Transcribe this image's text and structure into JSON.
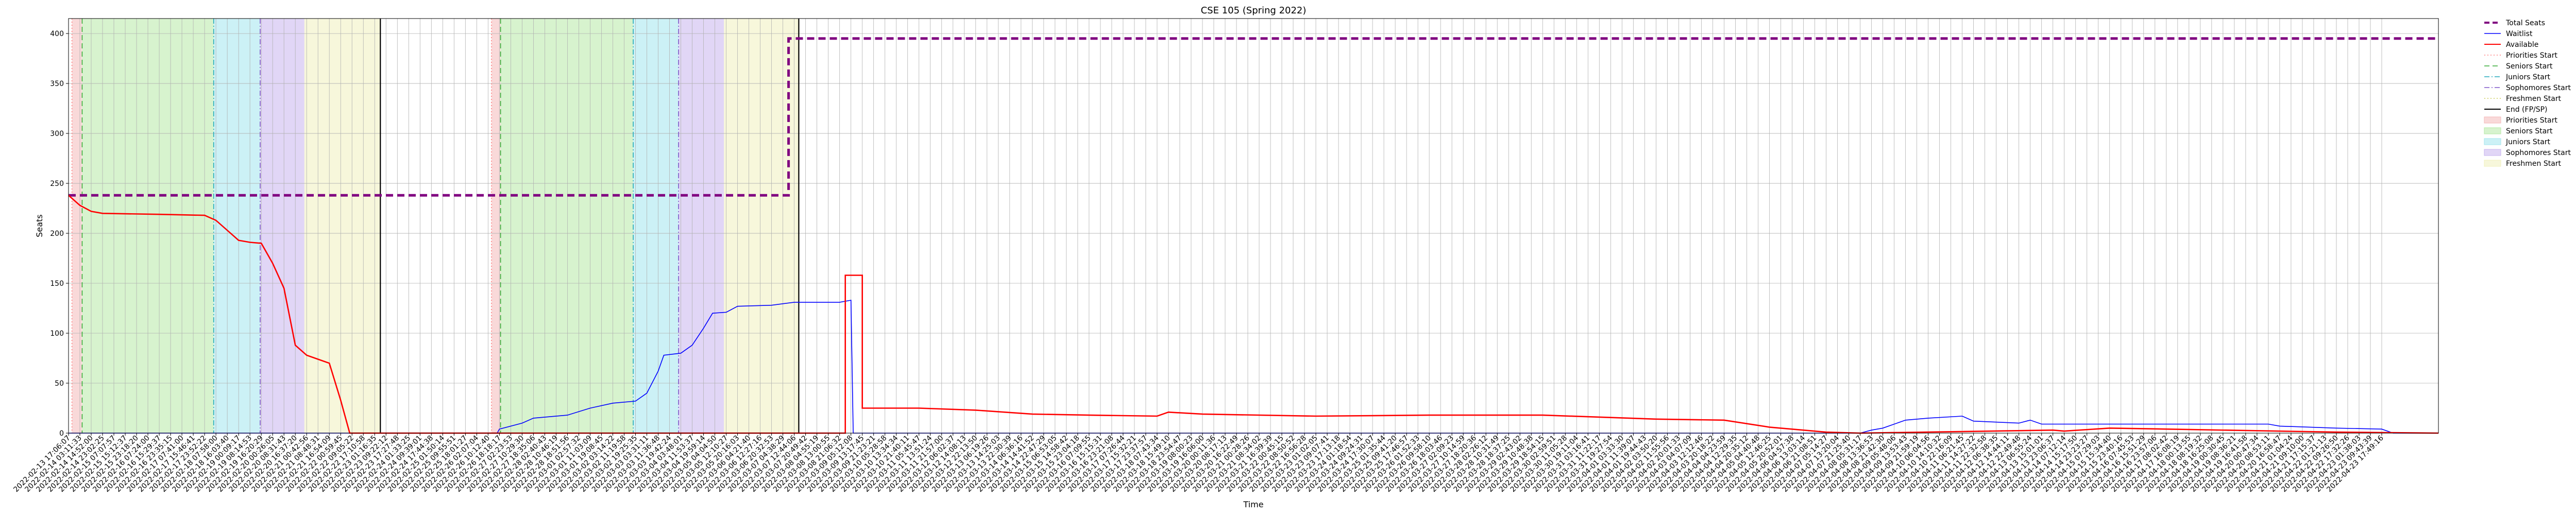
{
  "chart_data": {
    "type": "line",
    "title": "CSE 105 (Spring 2022)",
    "xlabel": "Time",
    "ylabel": "Seats",
    "ylim": [
      0,
      415
    ],
    "yticks": [
      0,
      50,
      100,
      150,
      200,
      250,
      300,
      350,
      400
    ],
    "grid": true,
    "legend_position": "outside-right",
    "x_tick_labels": [
      "2022-02-13 17:06:07",
      "2022-02-14 03:11:33",
      "2022-02-14 14:52:00",
      "2022-02-14 23:02:25",
      "2022-02-15 07:07:57",
      "2022-02-15 15:12:37",
      "2022-02-15 23:18:20",
      "2022-02-16 07:24:00",
      "2022-02-16 15:29:37",
      "2022-02-16 23:35:15",
      "2022-02-17 07:41:00",
      "2022-02-17 15:46:41",
      "2022-02-17 23:52:22",
      "2022-02-18 07:58:00",
      "2022-02-18 16:03:40",
      "2022-02-19 00:09:17",
      "2022-02-19 08:14:53",
      "2022-02-19 16:20:29",
      "2022-02-20 00:26:05",
      "2022-02-20 08:31:43",
      "2022-02-20 16:37:20",
      "2022-02-21 00:42:56",
      "2022-02-21 08:48:31",
      "2022-02-21 16:54:09",
      "2022-02-22 00:59:45",
      "2022-02-22 09:05:22",
      "2022-02-22 17:10:58",
      "2022-02-23 01:16:35",
      "2022-02-23 09:22:12",
      "2022-02-23 17:27:48",
      "2022-02-24 01:33:25",
      "2022-02-24 09:39:01",
      "2022-02-24 17:44:38",
      "2022-02-25 01:50:14",
      "2022-02-25 09:55:51",
      "2022-02-25 18:01:27",
      "2022-02-26 02:07:04",
      "2022-02-26 10:12:40",
      "2022-02-26 18:18:17",
      "2022-02-27 02:23:53",
      "2022-02-27 10:29:30",
      "2022-02-27 18:35:06",
      "2022-02-28 02:40:43",
      "2022-02-28 10:46:19",
      "2022-02-28 18:51:56",
      "2022-03-01 02:57:32",
      "2022-03-01 11:03:09",
      "2022-03-01 19:08:45",
      "2022-03-02 03:14:22",
      "2022-03-02 11:19:58",
      "2022-03-02 19:25:35",
      "2022-03-03 03:31:11",
      "2022-03-03 11:36:48",
      "2022-03-03 19:42:24",
      "2022-03-04 03:48:01",
      "2022-03-04 11:53:37",
      "2022-03-04 19:59:14",
      "2022-03-05 04:04:50",
      "2022-03-05 12:10:27",
      "2022-03-05 20:16:03",
      "2022-03-06 04:21:40",
      "2022-03-06 12:27:16",
      "2022-03-06 20:32:53",
      "2022-03-07 04:38:29",
      "2022-03-07 12:44:06",
      "2022-03-07 20:49:42",
      "2022-03-08 04:55:19",
      "2022-03-08 13:00:55",
      "2022-03-08 21:06:32",
      "2022-03-09 05:12:08",
      "2022-03-09 13:17:45",
      "2022-03-09 21:23:21",
      "2022-03-10 05:28:58",
      "2022-03-10 13:34:34",
      "2022-03-10 21:40:11",
      "2022-03-11 05:45:47",
      "2022-03-11 13:51:24",
      "2022-03-11 21:57:00",
      "2022-03-12 06:02:37",
      "2022-03-12 14:08:13",
      "2022-03-12 22:13:50",
      "2022-03-13 06:19:26",
      "2022-03-13 14:25:03",
      "2022-03-13 22:30:39",
      "2022-03-14 06:36:16",
      "2022-03-14 14:41:52",
      "2022-03-14 22:47:29",
      "2022-03-15 06:53:05",
      "2022-03-15 14:58:42",
      "2022-03-15 23:04:18",
      "2022-03-16 07:09:55",
      "2022-03-16 15:15:31",
      "2022-03-16 23:21:08",
      "2022-03-17 07:26:44",
      "2022-03-17 15:32:21",
      "2022-03-17 23:37:57",
      "2022-03-18 07:43:34",
      "2022-03-18 15:49:10",
      "2022-03-18 23:54:47",
      "2022-03-19 08:00:23",
      "2022-03-19 16:06:00",
      "2022-03-20 00:11:36",
      "2022-03-20 08:17:13",
      "2022-03-20 16:22:49",
      "2022-03-21 00:28:26",
      "2022-03-21 08:34:02",
      "2022-03-21 16:39:39",
      "2022-03-22 00:45:15",
      "2022-03-22 08:50:52",
      "2022-03-22 16:56:28",
      "2022-03-23 01:02:05",
      "2022-03-23 09:07:41",
      "2022-03-23 17:13:18",
      "2022-03-24 01:18:54",
      "2022-03-24 09:24:31",
      "2022-03-24 17:30:07",
      "2022-03-25 01:35:44",
      "2022-03-25 09:41:20",
      "2022-03-25 17:46:57",
      "2022-03-26 01:52:33",
      "2022-03-26 09:58:10",
      "2022-03-26 18:03:46",
      "2022-03-27 02:09:23",
      "2022-03-27 10:14:59",
      "2022-03-27 18:20:36",
      "2022-03-28 02:26:12",
      "2022-03-28 10:31:49",
      "2022-03-28 18:37:25",
      "2022-03-29 02:43:02",
      "2022-03-29 10:48:38",
      "2022-03-29 18:54:15",
      "2022-03-30 02:59:51",
      "2022-03-30 11:05:28",
      "2022-03-30 19:11:04",
      "2022-03-31 03:16:41",
      "2022-03-31 11:22:17",
      "2022-03-31 19:27:54",
      "2022-04-01 03:33:30",
      "2022-04-01 11:39:07",
      "2022-04-01 19:44:43",
      "2022-04-02 03:50:20",
      "2022-04-02 11:55:56",
      "2022-04-02 20:01:33",
      "2022-04-03 04:07:09",
      "2022-04-03 12:12:46",
      "2022-04-03 20:18:22",
      "2022-04-04 04:23:59",
      "2022-04-04 12:29:35",
      "2022-04-04 20:35:12",
      "2022-04-05 04:40:48",
      "2022-04-05 12:46:25",
      "2022-04-05 20:52:01",
      "2022-04-06 04:57:38",
      "2022-04-06 13:03:14",
      "2022-04-06 21:08:51",
      "2022-04-07 05:14:27",
      "2022-04-07 13:20:04",
      "2022-04-07 21:25:40",
      "2022-04-08 05:31:17",
      "2022-04-08 13:36:53",
      "2022-04-08 21:42:30",
      "2022-04-09 05:48:06",
      "2022-04-09 13:53:43",
      "2022-04-09 21:59:19",
      "2022-04-10 06:04:56",
      "2022-04-10 14:10:32",
      "2022-04-10 22:16:09",
      "2022-04-11 06:21:45",
      "2022-04-11 14:27:22",
      "2022-04-11 22:32:58",
      "2022-04-12 06:38:35",
      "2022-04-12 14:44:11",
      "2022-04-12 22:49:48",
      "2022-04-13 06:55:24",
      "2022-04-13 15:01:01",
      "2022-04-13 23:06:37",
      "2022-04-14 07:12:14",
      "2022-04-14 15:17:50",
      "2022-04-14 23:23:27",
      "2022-04-15 07:29:03",
      "2022-04-15 15:34:40",
      "2022-04-15 23:40:16",
      "2022-04-16 07:45:53",
      "2022-04-16 15:51:29",
      "2022-04-16 23:57:06",
      "2022-04-17 08:02:42",
      "2022-04-17 16:08:19",
      "2022-04-18 00:13:55",
      "2022-04-18 08:19:32",
      "2022-04-18 16:25:08",
      "2022-04-19 00:30:45",
      "2022-04-19 08:36:21",
      "2022-04-19 16:41:58",
      "2022-04-20 00:47:34",
      "2022-04-20 08:53:11",
      "2022-04-20 16:58:47",
      "2022-04-21 01:04:24",
      "2022-04-21 09:10:00",
      "2022-04-21 17:15:37",
      "2022-04-22 01:21:13",
      "2022-04-22 09:26:50",
      "2022-04-22 17:32:26",
      "2022-04-23 01:38:03",
      "2022-04-23 09:43:39",
      "2022-04-23 17:49:16"
    ],
    "x_domain": [
      0,
      209
    ],
    "series": [
      {
        "name": "Total Seats",
        "color": "#800080",
        "style": "dashed",
        "points": [
          [
            0,
            238
          ],
          [
            63.5,
            238
          ],
          [
            63.5,
            395
          ],
          [
            209,
            395
          ]
        ]
      },
      {
        "name": "Waitlist",
        "color": "#0000ff",
        "style": "solid",
        "points": [
          [
            0,
            0
          ],
          [
            37.8,
            0
          ],
          [
            38,
            4
          ],
          [
            40,
            10
          ],
          [
            41,
            15
          ],
          [
            44,
            18
          ],
          [
            46,
            25
          ],
          [
            48,
            30
          ],
          [
            50,
            32
          ],
          [
            51,
            40
          ],
          [
            52,
            62
          ],
          [
            52.5,
            78
          ],
          [
            54,
            80
          ],
          [
            55,
            88
          ],
          [
            56,
            105
          ],
          [
            56.8,
            120
          ],
          [
            58,
            121
          ],
          [
            59,
            127
          ],
          [
            62,
            128
          ],
          [
            64,
            131
          ],
          [
            68,
            131
          ],
          [
            69,
            133
          ],
          [
            69.2,
            0
          ],
          [
            158,
            0
          ],
          [
            159,
            3
          ],
          [
            160,
            5
          ],
          [
            162,
            13
          ],
          [
            164,
            15
          ],
          [
            167,
            17
          ],
          [
            168,
            12
          ],
          [
            172,
            10
          ],
          [
            173,
            13
          ],
          [
            174,
            9
          ],
          [
            194,
            9
          ],
          [
            195,
            7
          ],
          [
            200,
            5
          ],
          [
            204,
            4
          ],
          [
            205,
            0
          ],
          [
            209,
            0
          ]
        ]
      },
      {
        "name": "Available",
        "color": "#ff0000",
        "style": "solid",
        "points": [
          [
            0,
            238
          ],
          [
            1,
            228
          ],
          [
            2,
            222
          ],
          [
            3,
            220
          ],
          [
            8,
            219
          ],
          [
            12,
            218
          ],
          [
            13,
            213
          ],
          [
            14,
            203
          ],
          [
            15,
            193
          ],
          [
            16,
            191
          ],
          [
            17,
            190
          ],
          [
            18,
            170
          ],
          [
            19,
            145
          ],
          [
            20,
            88
          ],
          [
            21,
            78
          ],
          [
            22,
            74
          ],
          [
            23,
            70
          ],
          [
            24,
            33
          ],
          [
            24.8,
            0
          ],
          [
            68.5,
            0
          ],
          [
            68.5,
            158
          ],
          [
            70,
            158
          ],
          [
            70,
            25
          ],
          [
            75,
            25
          ],
          [
            80,
            23
          ],
          [
            85,
            19
          ],
          [
            90,
            18
          ],
          [
            96,
            17
          ],
          [
            97,
            21
          ],
          [
            100,
            19
          ],
          [
            110,
            17
          ],
          [
            120,
            18
          ],
          [
            130,
            18
          ],
          [
            140,
            14
          ],
          [
            146,
            13
          ],
          [
            150,
            6
          ],
          [
            155,
            1
          ],
          [
            158,
            0
          ],
          [
            175,
            3
          ],
          [
            176,
            2
          ],
          [
            180,
            5
          ],
          [
            185,
            4
          ],
          [
            200,
            1
          ],
          [
            209,
            0
          ]
        ]
      }
    ],
    "shaded_regions": [
      {
        "legend": "Priorities Start",
        "color": "#f4b9b9",
        "ranges": [
          [
            0.3,
            1.2
          ],
          [
            37.3,
            38.1
          ]
        ]
      },
      {
        "legend": "Seniors Start",
        "color": "#b6eaa6",
        "ranges": [
          [
            1.2,
            12.8
          ],
          [
            38.1,
            49.8
          ]
        ]
      },
      {
        "legend": "Juniors Start",
        "color": "#a3e6ee",
        "ranges": [
          [
            12.8,
            16.9
          ],
          [
            49.8,
            53.8
          ]
        ]
      },
      {
        "legend": "Sophomores Start",
        "color": "#c8b4ee",
        "ranges": [
          [
            16.9,
            20.8
          ],
          [
            53.8,
            57.8
          ]
        ]
      },
      {
        "legend": "Freshmen Start",
        "color": "#f1f1bd",
        "ranges": [
          [
            20.8,
            27.5
          ],
          [
            57.8,
            64.4
          ]
        ]
      }
    ],
    "start_lines": [
      {
        "legend": "Priorities Start",
        "color": "#ff7f7f",
        "style": "dotted",
        "x": [
          0.3,
          37.3
        ]
      },
      {
        "legend": "Seniors Start",
        "color": "#33aa33",
        "style": "dashed",
        "x": [
          1.2,
          38.1
        ]
      },
      {
        "legend": "Juniors Start",
        "color": "#22aabb",
        "style": "dashdot",
        "x": [
          12.8,
          49.8
        ]
      },
      {
        "legend": "Sophomores Start",
        "color": "#7f55c8",
        "style": "dashdot",
        "x": [
          16.9,
          53.8
        ]
      },
      {
        "legend": "End (FP/SP)",
        "color": "#000000",
        "style": "solid",
        "x": [
          27.5,
          64.4
        ]
      }
    ],
    "legend": [
      {
        "label": "Total Seats",
        "kind": "line",
        "color": "#800080",
        "style": "dashed",
        "width": 4
      },
      {
        "label": "Waitlist",
        "kind": "line",
        "color": "#0000ff",
        "style": "solid",
        "width": 1.5
      },
      {
        "label": "Available",
        "kind": "line",
        "color": "#ff0000",
        "style": "solid",
        "width": 2
      },
      {
        "label": "Priorities Start",
        "kind": "line",
        "color": "#ff7f7f",
        "style": "dotted",
        "width": 1.5
      },
      {
        "label": "Seniors Start",
        "kind": "line",
        "color": "#33aa33",
        "style": "dashed",
        "width": 1.5
      },
      {
        "label": "Juniors Start",
        "kind": "line",
        "color": "#22aabb",
        "style": "dashdot",
        "width": 1.5
      },
      {
        "label": "Sophomores Start",
        "kind": "line",
        "color": "#7f55c8",
        "style": "dashdot",
        "width": 1.5
      },
      {
        "label": "Freshmen Start",
        "kind": "line",
        "color": "#cccc55",
        "style": "dotted",
        "width": 1.5
      },
      {
        "label": "End (FP/SP)",
        "kind": "line",
        "color": "#000000",
        "style": "solid",
        "width": 2
      },
      {
        "label": "Priorities Start",
        "kind": "patch",
        "color": "#f4b9b9"
      },
      {
        "label": "Seniors Start",
        "kind": "patch",
        "color": "#b6eaa6"
      },
      {
        "label": "Juniors Start",
        "kind": "patch",
        "color": "#a3e6ee"
      },
      {
        "label": "Sophomores Start",
        "kind": "patch",
        "color": "#c8b4ee"
      },
      {
        "label": "Freshmen Start",
        "kind": "patch",
        "color": "#f1f1bd"
      }
    ]
  }
}
